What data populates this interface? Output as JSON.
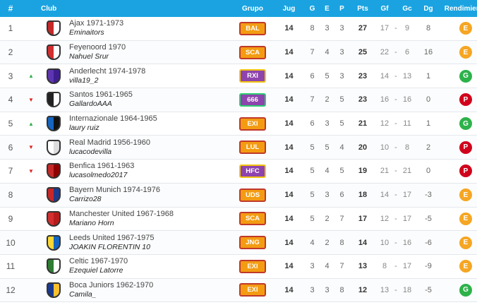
{
  "headers": {
    "rank": "#",
    "club": "Club",
    "grupo": "Grupo",
    "jug": "Jug",
    "g": "G",
    "e": "E",
    "p": "P",
    "pts": "Pts",
    "gf": "Gf",
    "gc": "Gc",
    "dg": "Dg",
    "rendimiento": "Rendimiento"
  },
  "rows": [
    {
      "rank": "1",
      "trend": "",
      "club": "Ajax 1971-1973",
      "manager": "Eminaitors",
      "grupo": "BAL",
      "jug": "14",
      "g": "8",
      "e": "3",
      "p": "3",
      "pts": "27",
      "gf": "17",
      "gc": "9",
      "dg": "8",
      "rend": "E",
      "crest": [
        "#c62828",
        "#ffffff"
      ]
    },
    {
      "rank": "2",
      "trend": "",
      "club": "Feyenoord 1970",
      "manager": "Nahuel Srur",
      "grupo": "SCA",
      "jug": "14",
      "g": "7",
      "e": "4",
      "p": "3",
      "pts": "25",
      "gf": "22",
      "gc": "6",
      "dg": "16",
      "rend": "E",
      "crest": [
        "#d32f2f",
        "#ffffff"
      ]
    },
    {
      "rank": "3",
      "trend": "up",
      "club": "Anderlecht 1974-1978",
      "manager": "villa19_2",
      "grupo": "RXI",
      "jug": "14",
      "g": "6",
      "e": "5",
      "p": "3",
      "pts": "23",
      "gf": "14",
      "gc": "13",
      "dg": "1",
      "rend": "G",
      "crest": [
        "#5e35b1",
        "#3f1f8f"
      ]
    },
    {
      "rank": "4",
      "trend": "down",
      "club": "Santos 1961-1965",
      "manager": "GallardoAAA",
      "grupo": "666",
      "jug": "14",
      "g": "7",
      "e": "2",
      "p": "5",
      "pts": "23",
      "gf": "16",
      "gc": "16",
      "dg": "0",
      "rend": "P",
      "crest": [
        "#222222",
        "#ffffff"
      ]
    },
    {
      "rank": "5",
      "trend": "up",
      "club": "Internazionale 1964-1965",
      "manager": "laury ruiz",
      "grupo": "EXI",
      "jug": "14",
      "g": "6",
      "e": "3",
      "p": "5",
      "pts": "21",
      "gf": "12",
      "gc": "11",
      "dg": "1",
      "rend": "G",
      "crest": [
        "#1565c0",
        "#111111"
      ]
    },
    {
      "rank": "6",
      "trend": "down",
      "club": "Real Madrid 1956-1960",
      "manager": "lucacodevilla",
      "grupo": "LUL",
      "jug": "14",
      "g": "5",
      "e": "5",
      "p": "4",
      "pts": "20",
      "gf": "10",
      "gc": "8",
      "dg": "2",
      "rend": "P",
      "crest": [
        "#ffffff",
        "#dddddd"
      ]
    },
    {
      "rank": "7",
      "trend": "down",
      "club": "Benfica 1961-1963",
      "manager": "lucasolmedo2017",
      "grupo": "HFC",
      "jug": "14",
      "g": "5",
      "e": "4",
      "p": "5",
      "pts": "19",
      "gf": "21",
      "gc": "21",
      "dg": "0",
      "rend": "P",
      "crest": [
        "#c62828",
        "#8e0000"
      ]
    },
    {
      "rank": "8",
      "trend": "",
      "club": "Bayern Munich 1974-1976",
      "manager": "Carrizo28",
      "grupo": "UDS",
      "jug": "14",
      "g": "5",
      "e": "3",
      "p": "6",
      "pts": "18",
      "gf": "14",
      "gc": "17",
      "dg": "-3",
      "rend": "E",
      "crest": [
        "#c62828",
        "#1e3a8a"
      ]
    },
    {
      "rank": "9",
      "trend": "",
      "club": "Manchester United 1967-1968",
      "manager": "Mariano Horn",
      "grupo": "SCA",
      "jug": "14",
      "g": "5",
      "e": "2",
      "p": "7",
      "pts": "17",
      "gf": "12",
      "gc": "17",
      "dg": "-5",
      "rend": "E",
      "crest": [
        "#d32f2f",
        "#b71c1c"
      ]
    },
    {
      "rank": "10",
      "trend": "",
      "club": "Leeds United 1967-1975",
      "manager": "JOAKIN FLORENTIN 10",
      "grupo": "JNG",
      "jug": "14",
      "g": "4",
      "e": "2",
      "p": "8",
      "pts": "14",
      "gf": "10",
      "gc": "16",
      "dg": "-6",
      "rend": "E",
      "crest": [
        "#fdd835",
        "#1565c0"
      ]
    },
    {
      "rank": "11",
      "trend": "",
      "club": "Celtic 1967-1970",
      "manager": "Ezequiel Latorre",
      "grupo": "EXI",
      "jug": "14",
      "g": "3",
      "e": "4",
      "p": "7",
      "pts": "13",
      "gf": "8",
      "gc": "17",
      "dg": "-9",
      "rend": "E",
      "crest": [
        "#2e7d32",
        "#ffffff"
      ]
    },
    {
      "rank": "12",
      "trend": "",
      "club": "Boca Juniors 1962-1970",
      "manager": "Camila_",
      "grupo": "EXI",
      "jug": "14",
      "g": "3",
      "e": "3",
      "p": "8",
      "pts": "12",
      "gf": "13",
      "gc": "18",
      "dg": "-5",
      "rend": "G",
      "crest": [
        "#1a3a8f",
        "#fbc02d"
      ]
    }
  ],
  "grupo_colors": {
    "BAL": [
      "#f39c12",
      "#c0392b"
    ],
    "SCA": [
      "#f39c12",
      "#c0392b"
    ],
    "RXI": [
      "#8e44ad",
      "#f1c40f"
    ],
    "666": [
      "#8e44ad",
      "#2ecc71"
    ],
    "EXI": [
      "#f39c12",
      "#c0392b"
    ],
    "LUL": [
      "#f39c12",
      "#c0392b"
    ],
    "HFC": [
      "#8e44ad",
      "#f1c40f"
    ],
    "UDS": [
      "#f39c12",
      "#c0392b"
    ],
    "JNG": [
      "#f39c12",
      "#c0392b"
    ]
  },
  "rend_colors": {
    "E": "#f5a623",
    "G": "#2db24a",
    "P": "#d0021b"
  },
  "header_color": "#1aa3e0"
}
